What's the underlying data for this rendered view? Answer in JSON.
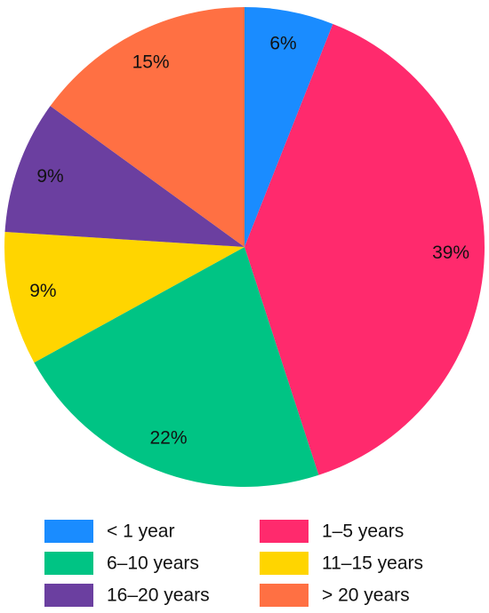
{
  "chart_data": {
    "type": "pie",
    "categories": [
      "< 1 year",
      "1–5 years",
      "6–10 years",
      "11–15 years",
      "16–20 years",
      "> 20 years"
    ],
    "values": [
      6,
      39,
      22,
      9,
      9,
      15
    ],
    "value_labels": [
      "6%",
      "39%",
      "22%",
      "9%",
      "9%",
      "15%"
    ],
    "colors": [
      "#1a8cff",
      "#ff2a6d",
      "#00c484",
      "#ffd500",
      "#6b3fa0",
      "#ff7043"
    ],
    "legend": "bottom"
  }
}
